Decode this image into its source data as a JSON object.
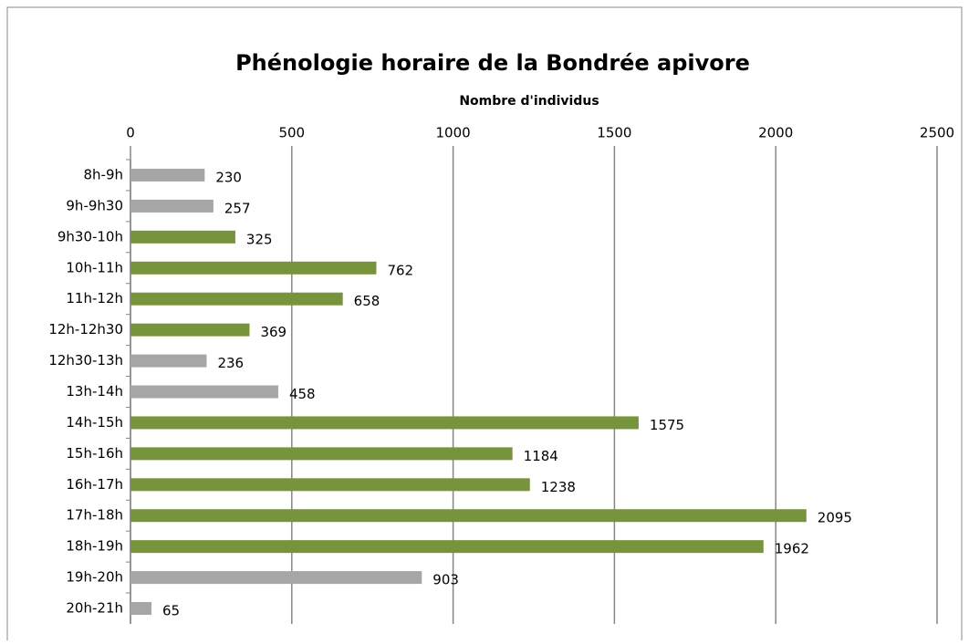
{
  "chart_data": {
    "type": "bar",
    "orientation": "horizontal",
    "title": "Phénologie horaire de la Bondrée apivore",
    "x_label": "Nombre d'individus",
    "categories": [
      "8h-9h",
      "9h-9h30",
      "9h30-10h",
      "10h-11h",
      "11h-12h",
      "12h-12h30",
      "12h30-13h",
      "13h-14h",
      "14h-15h",
      "15h-16h",
      "16h-17h",
      "17h-18h",
      "18h-19h",
      "19h-20h",
      "20h-21h"
    ],
    "values": [
      230,
      257,
      325,
      762,
      658,
      369,
      236,
      458,
      1575,
      1184,
      1238,
      2095,
      1962,
      903,
      65
    ],
    "colors": [
      "#a6a6a6",
      "#a6a6a6",
      "#77933c",
      "#77933c",
      "#77933c",
      "#77933c",
      "#a6a6a6",
      "#a6a6a6",
      "#77933c",
      "#77933c",
      "#77933c",
      "#77933c",
      "#77933c",
      "#a6a6a6",
      "#a6a6a6"
    ],
    "xlim": [
      0,
      2500
    ],
    "xticks": [
      0,
      500,
      1000,
      1500,
      2000,
      2500
    ],
    "grid": true
  }
}
